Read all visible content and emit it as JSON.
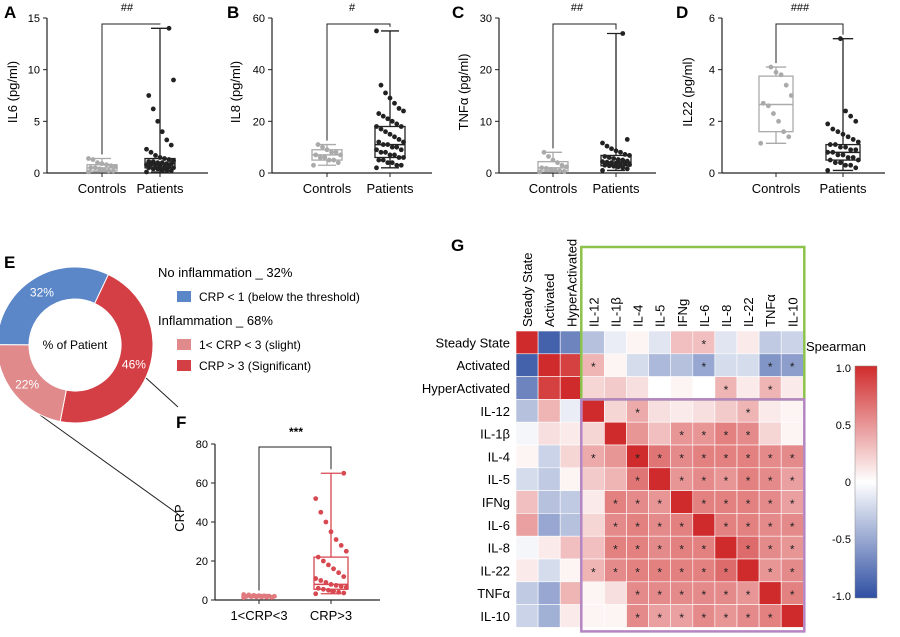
{
  "panels": {
    "A": {
      "letter": "A",
      "sig": "##",
      "ylabel": "IL6 (pg/ml)"
    },
    "B": {
      "letter": "B",
      "sig": "#",
      "ylabel": "IL8 (pg/ml)"
    },
    "C": {
      "letter": "C",
      "sig": "##",
      "ylabel": "TNFα (pg/ml)"
    },
    "D": {
      "letter": "D",
      "sig": "###",
      "ylabel": "IL22 (pg/ml)"
    },
    "E": {
      "letter": "E",
      "center_label": "% of Patient"
    },
    "F": {
      "letter": "F",
      "sig": "***",
      "ylabel": "CRP"
    },
    "G": {
      "letter": "G",
      "colorbar_title": "Spearman"
    }
  },
  "legend": {
    "no_inflammation": "No inflammation _ 32%",
    "crp_lt1": "CRP < 1 (below the threshold)",
    "inflammation": "Inflammation _ 68%",
    "crp_slight": "1< CRP < 3 (slight)",
    "crp_significant": "CRP > 3 (Significant)"
  },
  "colors": {
    "control_box": "#aaaaaa",
    "patient_box": "#222222",
    "crp_lt1": "#5b86c8",
    "crp_slight": "#e08a8c",
    "crp_significant": "#d33f45",
    "green_frame": "#8cc24a",
    "purple_frame": "#b485c2"
  },
  "chart_data": [
    {
      "panel": "A",
      "type": "box",
      "ylabel": "IL6 (pg/ml)",
      "ylim": [
        0,
        15
      ],
      "yticks": [
        0,
        5,
        10,
        15
      ],
      "categories": [
        "Controls",
        "Patients"
      ],
      "boxes": [
        {
          "name": "Controls",
          "min": 0.1,
          "q1": 0.2,
          "median": 0.5,
          "q3": 0.8,
          "max": 1.4,
          "points": [
            0.1,
            0.2,
            0.2,
            0.3,
            0.4,
            0.5,
            0.5,
            0.6,
            0.7,
            0.8,
            0.9,
            1.0,
            1.3,
            1.4
          ]
        },
        {
          "name": "Patients",
          "min": 0.1,
          "q1": 0.5,
          "median": 0.9,
          "q3": 1.4,
          "max": 14.0,
          "points": [
            0.1,
            0.2,
            0.3,
            0.3,
            0.4,
            0.4,
            0.5,
            0.5,
            0.6,
            0.6,
            0.7,
            0.7,
            0.8,
            0.8,
            0.9,
            0.9,
            1.0,
            1.0,
            1.1,
            1.1,
            1.2,
            1.3,
            1.4,
            1.5,
            1.7,
            2.0,
            2.3,
            2.7,
            3.2,
            4.0,
            5.0,
            6.2,
            7.5,
            9.0,
            14.0
          ]
        }
      ]
    },
    {
      "panel": "B",
      "type": "box",
      "ylabel": "IL8 (pg/ml)",
      "ylim": [
        0,
        60
      ],
      "yticks": [
        0,
        20,
        40,
        60
      ],
      "categories": [
        "Controls",
        "Patients"
      ],
      "boxes": [
        {
          "name": "Controls",
          "min": 3,
          "q1": 5,
          "median": 7,
          "q3": 9,
          "max": 11,
          "points": [
            3,
            4,
            5,
            5,
            6,
            6,
            7,
            7,
            8,
            8,
            9,
            10,
            11
          ]
        },
        {
          "name": "Patients",
          "min": 2,
          "q1": 6,
          "median": 11,
          "q3": 18,
          "max": 55,
          "points": [
            2,
            3,
            3,
            4,
            4,
            5,
            5,
            6,
            6,
            7,
            7,
            8,
            8,
            9,
            9,
            10,
            10,
            11,
            11,
            12,
            12,
            13,
            14,
            15,
            16,
            17,
            18,
            18,
            19,
            20,
            21,
            22,
            23,
            24,
            25,
            27,
            29,
            31,
            34,
            55
          ]
        }
      ]
    },
    {
      "panel": "C",
      "type": "box",
      "ylabel": "TNFα (pg/ml)",
      "ylim": [
        0,
        30
      ],
      "yticks": [
        0,
        10,
        20,
        30
      ],
      "categories": [
        "Controls",
        "Patients"
      ],
      "boxes": [
        {
          "name": "Controls",
          "min": 0.2,
          "q1": 0.4,
          "median": 1.0,
          "q3": 2.2,
          "max": 4.0,
          "points": [
            0.2,
            0.3,
            0.4,
            0.5,
            0.7,
            0.9,
            1.0,
            1.2,
            1.5,
            2.0,
            2.5,
            3.2,
            4.0
          ]
        },
        {
          "name": "Patients",
          "min": 0.5,
          "q1": 1.4,
          "median": 2.1,
          "q3": 3.4,
          "max": 27,
          "points": [
            0.5,
            0.8,
            1.0,
            1.2,
            1.3,
            1.4,
            1.5,
            1.6,
            1.7,
            1.8,
            1.9,
            2.0,
            2.1,
            2.2,
            2.3,
            2.5,
            2.6,
            2.8,
            3.0,
            3.2,
            3.4,
            3.6,
            4.0,
            4.3,
            4.7,
            5.2,
            5.8,
            6.5,
            27
          ]
        }
      ]
    },
    {
      "panel": "D",
      "type": "box",
      "ylabel": "IL22 (pg/ml)",
      "ylim": [
        0,
        6
      ],
      "yticks": [
        0,
        2,
        4,
        6
      ],
      "categories": [
        "Controls",
        "Patients"
      ],
      "boxes": [
        {
          "name": "Controls",
          "min": 1.15,
          "q1": 1.6,
          "median": 2.65,
          "q3": 3.75,
          "max": 4.1,
          "points": [
            1.15,
            1.4,
            1.6,
            2.0,
            2.3,
            2.6,
            2.7,
            3.0,
            3.4,
            3.8,
            3.9,
            4.1
          ]
        },
        {
          "name": "Patients",
          "min": 0.1,
          "q1": 0.5,
          "median": 0.8,
          "q3": 1.1,
          "max": 5.2,
          "points": [
            0.1,
            0.2,
            0.3,
            0.3,
            0.4,
            0.4,
            0.5,
            0.5,
            0.6,
            0.6,
            0.7,
            0.7,
            0.8,
            0.8,
            0.9,
            0.9,
            1.0,
            1.0,
            1.1,
            1.1,
            1.2,
            1.3,
            1.4,
            1.5,
            1.6,
            1.7,
            1.9,
            2.0,
            2.2,
            2.4,
            5.2
          ]
        }
      ]
    },
    {
      "panel": "E",
      "type": "pie",
      "slices": [
        {
          "label": "32%",
          "value": 32,
          "color": "#5b86c8"
        },
        {
          "label": "46%",
          "value": 46,
          "color": "#d33f45"
        },
        {
          "label": "22%",
          "value": 22,
          "color": "#e08a8c"
        }
      ]
    },
    {
      "panel": "F",
      "type": "box",
      "ylabel": "CRP",
      "ylim": [
        0,
        80
      ],
      "yticks": [
        0,
        20,
        40,
        60,
        80
      ],
      "categories": [
        "1<CRP<3",
        "CRP>3"
      ],
      "boxes": [
        {
          "name": "1<CRP<3",
          "min": 1.2,
          "q1": 1.5,
          "median": 1.8,
          "q3": 2.2,
          "max": 2.8,
          "points": [
            1.2,
            1.3,
            1.4,
            1.5,
            1.6,
            1.7,
            1.8,
            1.9,
            2.0,
            2.1,
            2.2,
            2.4,
            2.6,
            2.8
          ]
        },
        {
          "name": "CRP>3",
          "min": 3.2,
          "q1": 5.5,
          "median": 8,
          "q3": 22,
          "max": 65,
          "points": [
            3.2,
            3.6,
            4,
            4.5,
            5,
            5.5,
            6,
            6.5,
            7,
            7.5,
            8,
            9,
            10,
            11,
            12,
            14,
            16,
            18,
            20,
            22,
            25,
            28,
            31,
            35,
            40,
            45,
            52,
            65
          ]
        }
      ]
    },
    {
      "panel": "G",
      "type": "heatmap",
      "rows": [
        "Steady State",
        "Activated",
        "HyperActivated",
        "IL-12",
        "IL-1β",
        "IL-4",
        "IL-5",
        "IFNg",
        "IL-6",
        "IL-8",
        "IL-22",
        "TNFα",
        "IL-10"
      ],
      "cols": [
        "Steady State",
        "Activated",
        "HyperActivated",
        "IL-12",
        "IL-1β",
        "IL-4",
        "IL-5",
        "IFNg",
        "IL-6",
        "IL-8",
        "IL-22",
        "TNFα",
        "IL-10"
      ],
      "colorbar": {
        "ticks": [
          "1.0",
          "0.5",
          "0",
          "-0.5",
          "-1.0"
        ],
        "range": [
          -1,
          1
        ]
      },
      "values": [
        [
          1.0,
          -0.9,
          -0.7,
          -0.35,
          -0.1,
          0.05,
          -0.15,
          0.3,
          0.3,
          -0.15,
          0.1,
          -0.3,
          -0.25
        ],
        [
          -0.9,
          1.0,
          0.9,
          0.35,
          0.05,
          -0.2,
          -0.4,
          -0.35,
          -0.5,
          -0.2,
          -0.2,
          -0.6,
          -0.55
        ],
        [
          -0.7,
          0.9,
          1.0,
          0.2,
          0.25,
          0.15,
          0.0,
          0.05,
          0.0,
          0.35,
          0.1,
          0.35,
          0.1
        ],
        [
          -0.35,
          0.35,
          -0.1,
          1.0,
          0.2,
          0.4,
          0.15,
          0.1,
          0.15,
          0.25,
          0.35,
          0.1,
          0.05
        ],
        [
          -0.05,
          0.15,
          0.1,
          0.2,
          1.0,
          0.5,
          0.3,
          0.5,
          0.5,
          0.6,
          0.55,
          0.2,
          0.05
        ],
        [
          0.05,
          -0.25,
          0.2,
          0.4,
          0.5,
          1.0,
          0.65,
          0.55,
          0.6,
          0.6,
          0.6,
          0.55,
          0.55
        ],
        [
          -0.2,
          -0.3,
          0.05,
          0.25,
          0.35,
          0.65,
          1.0,
          0.5,
          0.55,
          0.5,
          0.6,
          0.55,
          0.45
        ],
        [
          0.3,
          -0.35,
          -0.3,
          0.1,
          0.6,
          0.55,
          0.5,
          1.0,
          0.6,
          0.6,
          0.6,
          0.55,
          0.45
        ],
        [
          0.45,
          -0.5,
          -0.35,
          0.2,
          0.55,
          0.6,
          0.55,
          0.6,
          1.0,
          0.6,
          0.6,
          0.55,
          0.55
        ],
        [
          -0.05,
          0.1,
          0.3,
          0.3,
          0.6,
          0.6,
          0.55,
          0.6,
          0.6,
          1.0,
          0.7,
          0.55,
          0.5
        ],
        [
          0.1,
          -0.2,
          0.05,
          0.35,
          0.55,
          0.6,
          0.6,
          0.6,
          0.6,
          0.7,
          1.0,
          0.5,
          0.55
        ],
        [
          -0.3,
          -0.5,
          0.35,
          0.05,
          0.15,
          0.55,
          0.55,
          0.55,
          0.55,
          0.55,
          0.5,
          1.0,
          0.6
        ],
        [
          -0.25,
          -0.45,
          0.1,
          0.05,
          0.05,
          0.55,
          0.45,
          0.45,
          0.55,
          0.5,
          0.55,
          0.6,
          1.0
        ]
      ],
      "significant": [
        [
          0,
          8
        ],
        [
          1,
          3
        ],
        [
          1,
          8
        ],
        [
          1,
          11
        ],
        [
          1,
          12
        ],
        [
          2,
          9
        ],
        [
          2,
          11
        ],
        [
          3,
          5
        ],
        [
          3,
          10
        ],
        [
          4,
          7
        ],
        [
          4,
          8
        ],
        [
          4,
          9
        ],
        [
          4,
          10
        ],
        [
          5,
          3
        ],
        [
          5,
          5
        ],
        [
          5,
          6
        ],
        [
          5,
          7
        ],
        [
          5,
          8
        ],
        [
          5,
          9
        ],
        [
          5,
          10
        ],
        [
          5,
          11
        ],
        [
          5,
          12
        ],
        [
          6,
          5
        ],
        [
          6,
          7
        ],
        [
          6,
          8
        ],
        [
          6,
          9
        ],
        [
          6,
          10
        ],
        [
          6,
          11
        ],
        [
          6,
          12
        ],
        [
          7,
          4
        ],
        [
          7,
          5
        ],
        [
          7,
          6
        ],
        [
          7,
          8
        ],
        [
          7,
          9
        ],
        [
          7,
          10
        ],
        [
          7,
          11
        ],
        [
          7,
          12
        ],
        [
          8,
          4
        ],
        [
          8,
          5
        ],
        [
          8,
          6
        ],
        [
          8,
          7
        ],
        [
          8,
          9
        ],
        [
          8,
          10
        ],
        [
          8,
          11
        ],
        [
          8,
          12
        ],
        [
          9,
          4
        ],
        [
          9,
          5
        ],
        [
          9,
          6
        ],
        [
          9,
          7
        ],
        [
          9,
          8
        ],
        [
          9,
          10
        ],
        [
          9,
          11
        ],
        [
          9,
          12
        ],
        [
          10,
          3
        ],
        [
          10,
          4
        ],
        [
          10,
          5
        ],
        [
          10,
          6
        ],
        [
          10,
          7
        ],
        [
          10,
          8
        ],
        [
          10,
          9
        ],
        [
          10,
          11
        ],
        [
          10,
          12
        ],
        [
          11,
          5
        ],
        [
          11,
          6
        ],
        [
          11,
          7
        ],
        [
          11,
          8
        ],
        [
          11,
          9
        ],
        [
          11,
          10
        ],
        [
          11,
          12
        ],
        [
          12,
          5
        ],
        [
          12,
          6
        ],
        [
          12,
          7
        ],
        [
          12,
          8
        ],
        [
          12,
          9
        ],
        [
          12,
          10
        ],
        [
          12,
          11
        ]
      ]
    }
  ]
}
